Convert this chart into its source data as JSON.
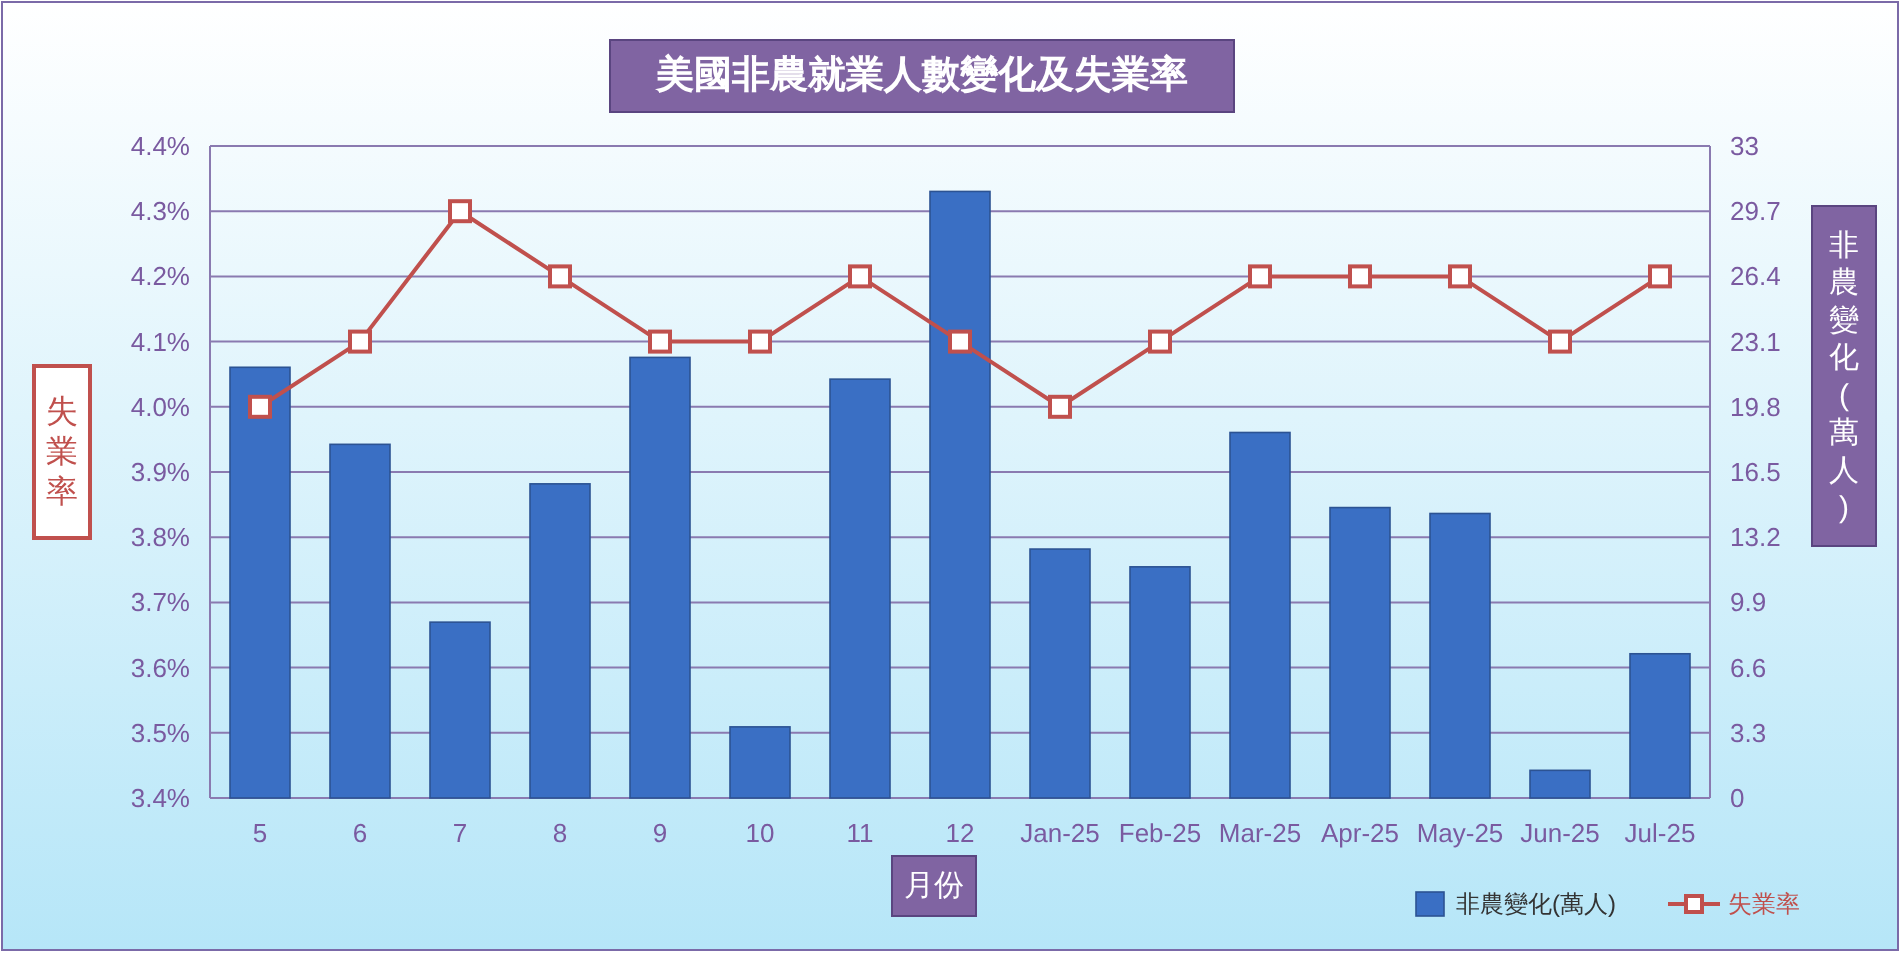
{
  "chart_data": {
    "type": "bar",
    "title": "美國非農就業人數變化及失業率",
    "xlabel": "月份",
    "ylabel": "失業率",
    "y2label": "非農變化(萬人)",
    "categories": [
      "5",
      "6",
      "7",
      "8",
      "9",
      "10",
      "11",
      "12",
      "Jan-25",
      "Feb-25",
      "Mar-25",
      "Apr-25",
      "May-25",
      "Jun-25",
      "Jul-25"
    ],
    "series": [
      {
        "name": "非農變化(萬人)",
        "axis": "y2",
        "color": "#3a6fc4",
        "values": [
          21.8,
          17.9,
          8.9,
          15.9,
          22.3,
          3.6,
          21.2,
          30.7,
          12.6,
          11.7,
          18.5,
          14.7,
          14.4,
          1.4,
          7.3
        ]
      },
      {
        "name": "失業率",
        "type": "line",
        "axis": "y",
        "color": "#c0504d",
        "marker": "square",
        "values": [
          4.0,
          4.1,
          4.3,
          4.2,
          4.1,
          4.1,
          4.2,
          4.1,
          4.0,
          4.1,
          4.2,
          4.2,
          4.2,
          4.1,
          4.2
        ]
      }
    ],
    "ylim": [
      3.4,
      4.4
    ],
    "yticks": [
      {
        "value": 3.4,
        "label": "3.4%"
      },
      {
        "value": 3.5,
        "label": "3.5%"
      },
      {
        "value": 3.6,
        "label": "3.6%"
      },
      {
        "value": 3.7,
        "label": "3.7%"
      },
      {
        "value": 3.8,
        "label": "3.8%"
      },
      {
        "value": 3.9,
        "label": "3.9%"
      },
      {
        "value": 4.0,
        "label": "4.0%"
      },
      {
        "value": 4.1,
        "label": "4.1%"
      },
      {
        "value": 4.2,
        "label": "4.2%"
      },
      {
        "value": 4.3,
        "label": "4.3%"
      },
      {
        "value": 4.4,
        "label": "4.4%"
      }
    ],
    "y2lim": [
      0,
      33
    ],
    "y2ticks": [
      0,
      3.3,
      6.6,
      9.9,
      13.2,
      16.5,
      19.8,
      23.1,
      26.4,
      29.7,
      33
    ],
    "grid": "y",
    "legend": "bottom right"
  }
}
